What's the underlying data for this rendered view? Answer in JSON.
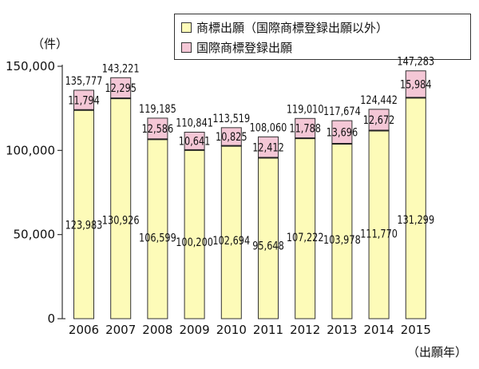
{
  "legend": {
    "domestic_label": "商標出願（国際商標登録出願以外）",
    "intl_label": "国際商標登録出願"
  },
  "y_unit": "（件）",
  "x_unit": "（出願年）",
  "colors": {
    "domestic": "#fdfbb8",
    "intl": "#f4c7d6",
    "stroke": "#333333"
  },
  "chart_data": {
    "type": "bar",
    "stacked": true,
    "categories": [
      "2006",
      "2007",
      "2008",
      "2009",
      "2010",
      "2011",
      "2012",
      "2013",
      "2014",
      "2015"
    ],
    "series": [
      {
        "name": "商標出願（国際商標登録出願以外）",
        "values": [
          123983,
          130926,
          106599,
          100200,
          102694,
          95648,
          107222,
          103978,
          111770,
          131299
        ]
      },
      {
        "name": "国際商標登録出願",
        "values": [
          11794,
          12295,
          12586,
          10641,
          10825,
          12412,
          11788,
          13696,
          12672,
          15984
        ]
      }
    ],
    "value_labels": {
      "domestic": [
        "123,983",
        "130,926",
        "106,599",
        "100,200",
        "102,694",
        "95,648",
        "107,222",
        "103,978",
        "111,770",
        "131,299"
      ],
      "intl": [
        "11,794",
        "12,295",
        "12,586",
        "10,641",
        "10,825",
        "12,412",
        "11,788",
        "13,696",
        "12,672",
        "15,984"
      ],
      "total": [
        "135,777",
        "143,221",
        "119,185",
        "110,841",
        "113,519",
        "108,060",
        "119,010",
        "117,674",
        "124,442",
        "147,283"
      ]
    },
    "y_ticks": [
      "0",
      "50,000",
      "100,000",
      "150,000"
    ],
    "y_tick_values": [
      0,
      50000,
      100000,
      150000
    ],
    "ylim": [
      0,
      150000
    ],
    "grid": false
  }
}
